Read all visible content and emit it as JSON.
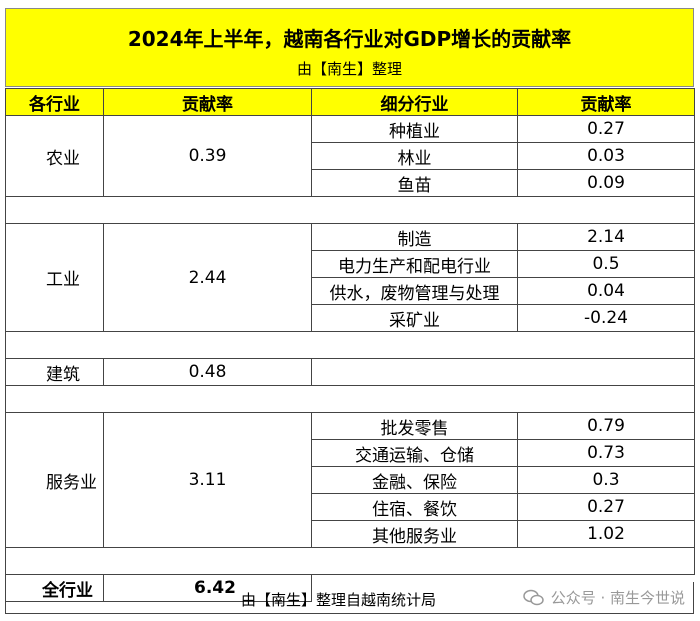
{
  "title": "2024年上半年，越南各行业对GDP增长的贡献率",
  "subtitle": "由【南生】整理",
  "headers": [
    "各行业",
    "贡献率",
    "细分行业",
    "贡献率"
  ],
  "sectors": [
    {
      "name": "农业",
      "rate": "0.39",
      "subs": [
        {
          "name": "种植业",
          "rate": "0.27"
        },
        {
          "name": "林业",
          "rate": "0.03"
        },
        {
          "name": "鱼苗",
          "rate": "0.09"
        }
      ]
    },
    {
      "name": "工业",
      "rate": "2.44",
      "subs": [
        {
          "name": "制造",
          "rate": "2.14"
        },
        {
          "name": "电力生产和配电行业",
          "rate": "0.5"
        },
        {
          "name": "供水，废物管理与处理",
          "rate": "0.04"
        },
        {
          "name": "采矿业",
          "rate": "-0.24"
        }
      ]
    },
    {
      "name": "建筑",
      "rate": "0.48",
      "subs": []
    },
    {
      "name": "服务业",
      "rate": "3.11",
      "subs": [
        {
          "name": "批发零售",
          "rate": "0.79"
        },
        {
          "name": "交通运输、仓储",
          "rate": "0.73"
        },
        {
          "name": "金融、保险",
          "rate": "0.3"
        },
        {
          "name": "住宿、餐饮",
          "rate": "0.27"
        },
        {
          "name": "其他服务业",
          "rate": "1.02"
        }
      ]
    }
  ],
  "total": {
    "name": "全行业",
    "rate": "6.42"
  },
  "footer": "由【南生】整理自越南统计局",
  "watermark": "公众号 · 南生今世说",
  "colors": {
    "header_bg": "#ffff00",
    "border": "#444444",
    "watermark": "#999999"
  }
}
